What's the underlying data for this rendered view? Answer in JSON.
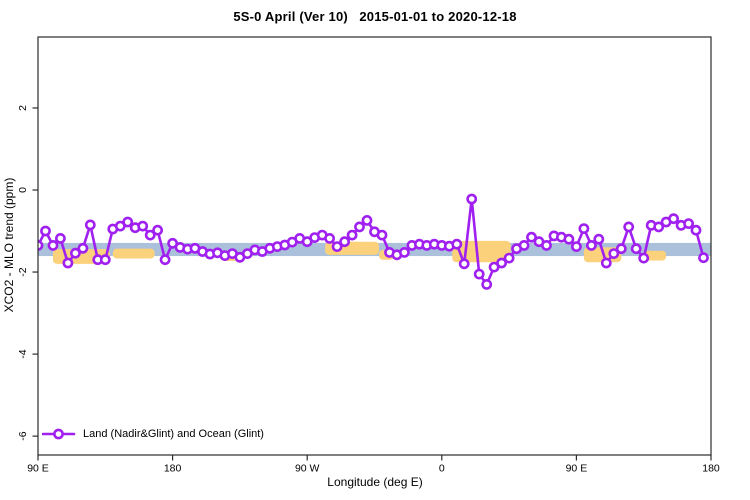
{
  "title": "5S-0 April (Ver 10)   2015-01-01 to 2020-12-18",
  "chart_data": {
    "type": "line",
    "title": "5S-0 April (Ver 10)   2015-01-01 to 2020-12-18",
    "xlabel": "Longitude (deg E)",
    "ylabel": "XCO2 - MLO trend (ppm)",
    "xlim": [
      90,
      540
    ],
    "ylim": [
      -6.46,
      3.73
    ],
    "grid": false,
    "x_ticks": [
      {
        "value": 90,
        "label": "90 E"
      },
      {
        "value": 180,
        "label": "180"
      },
      {
        "value": 270,
        "label": "90 W"
      },
      {
        "value": 360,
        "label": "0"
      },
      {
        "value": 450,
        "label": "90 E"
      },
      {
        "value": 540,
        "label": "180"
      }
    ],
    "y_ticks": [
      {
        "value": 2,
        "label": "2"
      },
      {
        "value": 0,
        "label": "0"
      },
      {
        "value": -2,
        "label": "-2"
      },
      {
        "value": -4,
        "label": "-4"
      },
      {
        "value": -6,
        "label": "-6"
      }
    ],
    "legend": {
      "position": "bottom-left",
      "entries": [
        {
          "label": "Land (Nadir&Glint) and Ocean (Glint)",
          "color": "#a020f0",
          "marker": "open-circle-line"
        }
      ]
    },
    "background_bands": {
      "flat_band": {
        "color": "#abc0da",
        "x1": 90,
        "x2": 540,
        "center": -1.45,
        "half_height": 0.16
      },
      "segments": [
        {
          "color": "#fbd17c",
          "x1": 100,
          "x2": 138,
          "center": -1.62,
          "half_height": 0.18
        },
        {
          "color": "#fbd17c",
          "x1": 140,
          "x2": 168,
          "center": -1.55,
          "half_height": 0.12
        },
        {
          "color": "#fbd17c",
          "x1": 213,
          "x2": 224,
          "center": -1.63,
          "half_height": 0.1
        },
        {
          "color": "#fbd17c",
          "x1": 282,
          "x2": 318,
          "center": -1.42,
          "half_height": 0.16
        },
        {
          "color": "#fbd17c",
          "x1": 318,
          "x2": 328,
          "center": -1.58,
          "half_height": 0.12
        },
        {
          "color": "#fbd17c",
          "x1": 367,
          "x2": 406,
          "center": -1.5,
          "half_height": 0.26
        },
        {
          "color": "#fbd17c",
          "x1": 455,
          "x2": 480,
          "center": -1.58,
          "half_height": 0.18
        },
        {
          "color": "#fbd17c",
          "x1": 495,
          "x2": 510,
          "center": -1.6,
          "half_height": 0.12
        }
      ]
    },
    "series": [
      {
        "name": "Land (Nadir&Glint) and Ocean (Glint)",
        "color": "#a020f0",
        "marker": "open-circle",
        "x": [
          90,
          95,
          100,
          105,
          110,
          115,
          120,
          125,
          130,
          135,
          140,
          145,
          150,
          155,
          160,
          165,
          170,
          175,
          180,
          185,
          190,
          195,
          200,
          205,
          210,
          215,
          220,
          225,
          230,
          235,
          240,
          245,
          250,
          255,
          260,
          265,
          270,
          275,
          280,
          285,
          290,
          295,
          300,
          305,
          310,
          315,
          320,
          325,
          330,
          335,
          340,
          345,
          350,
          355,
          360,
          365,
          370,
          375,
          380,
          385,
          390,
          395,
          400,
          405,
          410,
          415,
          420,
          425,
          430,
          435,
          440,
          445,
          450,
          455,
          460,
          465,
          470,
          475,
          480,
          485,
          490,
          495,
          500,
          505,
          510,
          515,
          520,
          525,
          530,
          535
        ],
        "y": [
          -1.35,
          -1.0,
          -1.35,
          -1.18,
          -1.78,
          -1.54,
          -1.42,
          -0.85,
          -1.7,
          -1.7,
          -0.95,
          -0.88,
          -0.78,
          -0.92,
          -0.88,
          -1.1,
          -0.98,
          -1.7,
          -1.3,
          -1.4,
          -1.44,
          -1.42,
          -1.5,
          -1.56,
          -1.53,
          -1.6,
          -1.55,
          -1.64,
          -1.55,
          -1.46,
          -1.5,
          -1.42,
          -1.38,
          -1.34,
          -1.27,
          -1.18,
          -1.26,
          -1.16,
          -1.1,
          -1.18,
          -1.38,
          -1.26,
          -1.1,
          -0.9,
          -0.74,
          -1.02,
          -1.1,
          -1.52,
          -1.58,
          -1.52,
          -1.35,
          -1.32,
          -1.35,
          -1.32,
          -1.35,
          -1.37,
          -1.32,
          -1.8,
          -0.22,
          -2.05,
          -2.3,
          -1.88,
          -1.78,
          -1.66,
          -1.43,
          -1.35,
          -1.15,
          -1.26,
          -1.35,
          -1.12,
          -1.15,
          -1.2,
          -1.38,
          -0.94,
          -1.35,
          -1.2,
          -1.78,
          -1.55,
          -1.43,
          -0.9,
          -1.43,
          -1.66,
          -0.86,
          -0.9,
          -0.78,
          -0.7,
          -0.86,
          -0.82,
          -0.98,
          -1.65
        ]
      }
    ],
    "axis_color": "#2b2b2b"
  }
}
